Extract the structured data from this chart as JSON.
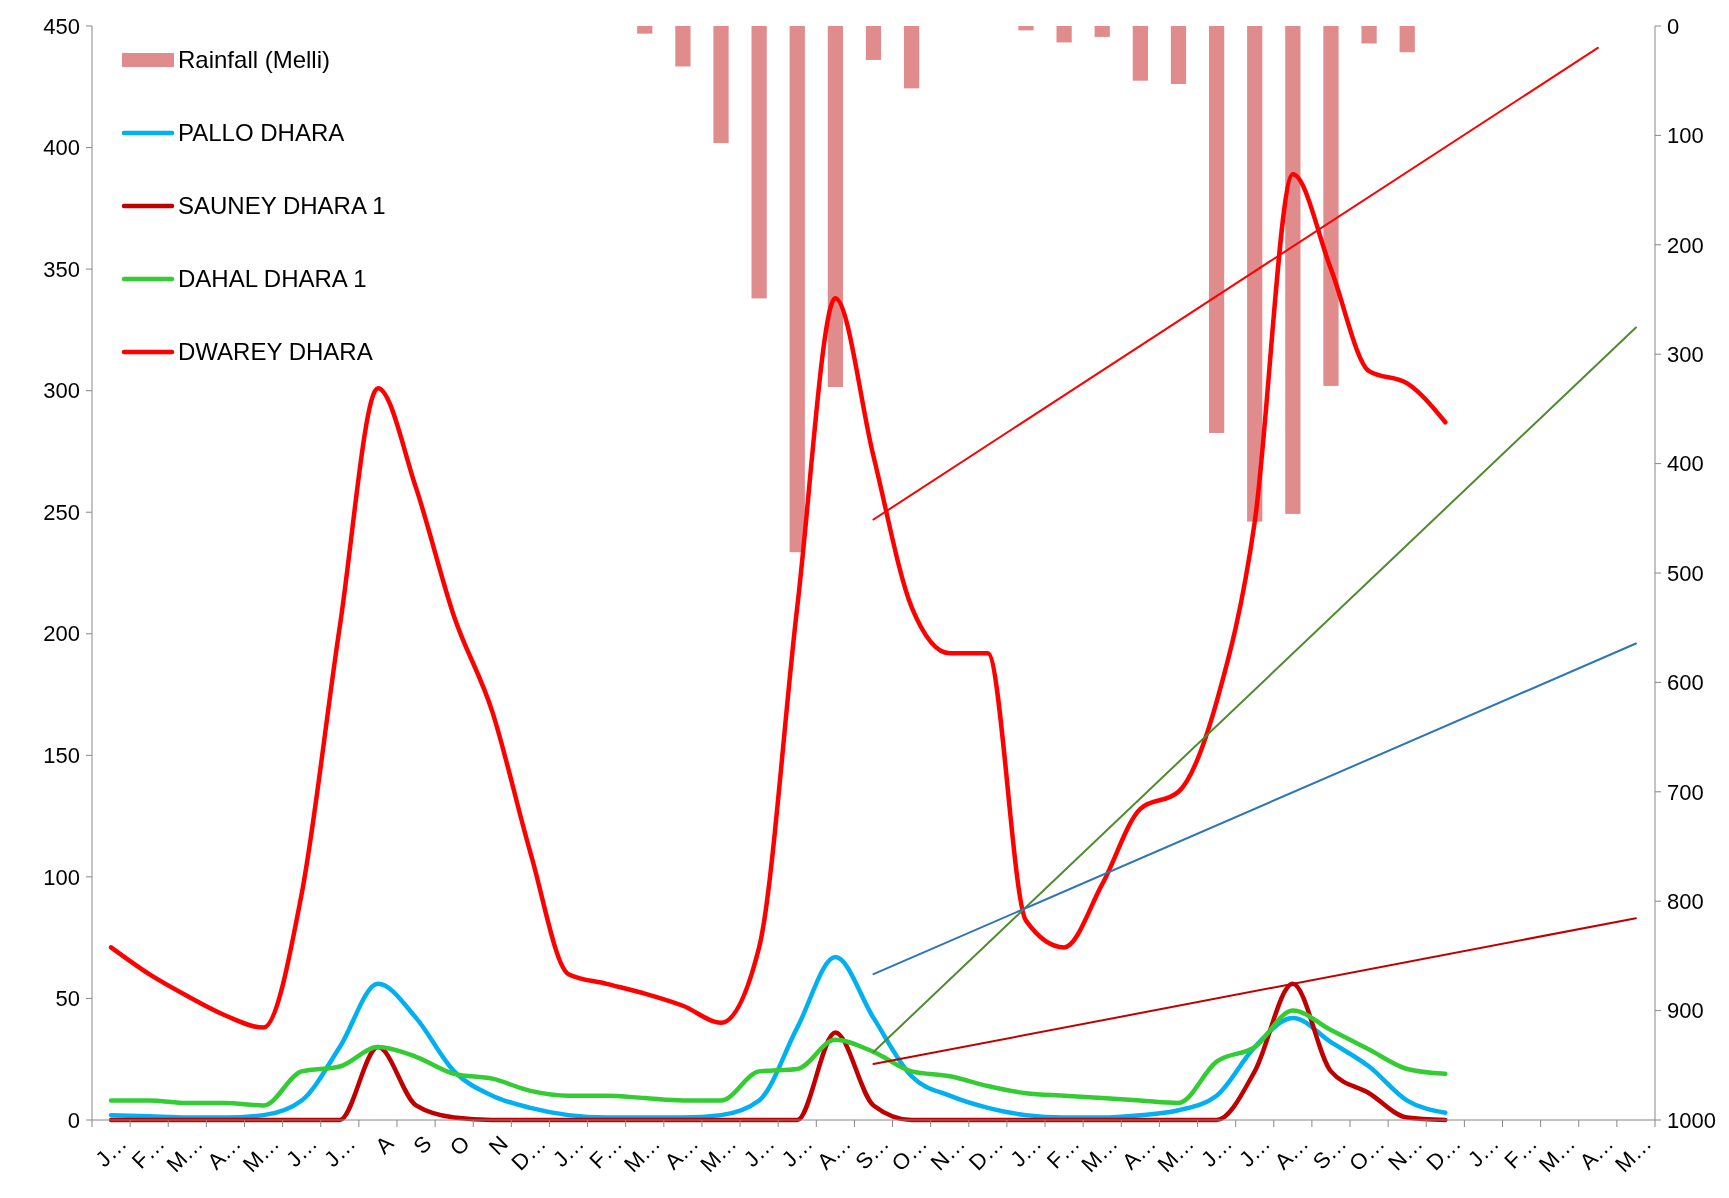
{
  "chart_data": {
    "type": "line",
    "categories": [
      "J…",
      "F…",
      "M…",
      "A…",
      "M…",
      "J…",
      "J…",
      "A",
      "S",
      "O",
      "N",
      "D…",
      "J…",
      "F…",
      "M…",
      "A…",
      "M…",
      "J…",
      "J…",
      "A…",
      "S…",
      "O…",
      "N…",
      "D…",
      "J…",
      "F…",
      "M…",
      "A…",
      "M…",
      "J…",
      "J…",
      "A…",
      "S…",
      "O…",
      "N…",
      "D…",
      "J…",
      "F…",
      "M…",
      "A…",
      "M…"
    ],
    "ylim": [
      0,
      450
    ],
    "yticks": [
      0,
      50,
      100,
      150,
      200,
      250,
      300,
      350,
      400,
      450
    ],
    "y2lim": [
      1000,
      0
    ],
    "y2ticks": [
      0,
      100,
      200,
      300,
      400,
      500,
      600,
      700,
      800,
      900,
      1000
    ],
    "grid": false,
    "legend": "top left",
    "series": [
      {
        "name": "Rainfall (Melli)",
        "type": "bar",
        "axis": "y2",
        "color": "#e08c8c",
        "values": [
          null,
          null,
          null,
          null,
          null,
          null,
          null,
          null,
          null,
          null,
          null,
          null,
          null,
          null,
          7,
          37,
          107,
          249,
          481,
          330,
          31,
          57,
          null,
          null,
          4,
          15,
          10,
          50,
          53,
          372,
          453,
          446,
          329,
          16,
          24,
          null,
          null,
          null,
          null,
          null,
          null
        ]
      },
      {
        "name": "PALLO DHARA",
        "color": "#00b0f0",
        "values": [
          2,
          1.5,
          1,
          1,
          2,
          8,
          30,
          56,
          42,
          20,
          10,
          5,
          2,
          1,
          1,
          1,
          2,
          8,
          38,
          67,
          42,
          18,
          10,
          5,
          2,
          1,
          1,
          2,
          4,
          10,
          30,
          42,
          32,
          22,
          8,
          3,
          null,
          null,
          null,
          null,
          null
        ]
      },
      {
        "name": "SAUNEY DHARA 1",
        "color": "#c00000",
        "values": [
          0,
          0,
          0,
          0,
          0,
          0,
          0,
          30,
          6,
          1,
          0,
          0,
          0,
          0,
          0,
          0,
          0,
          0,
          0,
          36,
          6,
          0,
          0,
          0,
          0,
          0,
          0,
          0,
          0,
          0,
          20,
          56,
          20,
          11,
          1,
          0,
          null,
          null,
          null,
          null,
          null
        ]
      },
      {
        "name": "DAHAL DHARA 1",
        "color": "#33cc33",
        "values": [
          8,
          8,
          7,
          7,
          6,
          20,
          22,
          30,
          26,
          19,
          17,
          12,
          10,
          10,
          9,
          8,
          8,
          20,
          21,
          33,
          28,
          20,
          18,
          14,
          11,
          10,
          9,
          8,
          7,
          24,
          30,
          45,
          37,
          29,
          21,
          19,
          null,
          null,
          null,
          null,
          null
        ]
      },
      {
        "name": "DWAREY DHARA",
        "color": "#ff0000",
        "values": [
          71,
          60,
          51,
          43,
          38,
          93,
          203,
          301,
          260,
          207,
          168,
          110,
          60,
          56,
          52,
          47,
          40,
          71,
          211,
          338,
          273,
          211,
          192,
          192,
          82,
          71,
          97,
          128,
          135,
          172,
          246,
          389,
          350,
          308,
          303,
          287,
          null,
          null,
          null,
          null,
          null
        ]
      },
      {
        "color": "#ff0000",
        "values": [
          null,
          null,
          null,
          null,
          null,
          null,
          null,
          null,
          null,
          null,
          null,
          null,
          null,
          null,
          null,
          null,
          null,
          null,
          null,
          null,
          247,
          null,
          null,
          null,
          null,
          null,
          null,
          null,
          null,
          null,
          null,
          null,
          null,
          null,
          null,
          null,
          null,
          null,
          null,
          441,
          null
        ]
      },
      {
        "color": "#4e8b2f",
        "values": [
          null,
          null,
          null,
          null,
          null,
          null,
          null,
          null,
          null,
          null,
          null,
          null,
          null,
          null,
          null,
          null,
          null,
          null,
          null,
          null,
          28,
          null,
          null,
          null,
          null,
          null,
          null,
          null,
          null,
          null,
          null,
          null,
          null,
          null,
          null,
          null,
          null,
          null,
          null,
          null,
          326
        ]
      },
      {
        "color": "#2e75b6",
        "values": [
          null,
          null,
          null,
          null,
          null,
          null,
          null,
          null,
          null,
          null,
          null,
          null,
          null,
          null,
          null,
          null,
          null,
          null,
          null,
          null,
          60,
          null,
          null,
          null,
          null,
          null,
          null,
          null,
          null,
          null,
          null,
          null,
          null,
          null,
          null,
          null,
          null,
          null,
          null,
          null,
          196
        ]
      },
      {
        "color": "#c00000",
        "values": [
          null,
          null,
          null,
          null,
          null,
          null,
          null,
          null,
          null,
          null,
          null,
          null,
          null,
          null,
          null,
          null,
          null,
          null,
          null,
          null,
          23,
          null,
          null,
          null,
          null,
          null,
          null,
          null,
          null,
          null,
          null,
          null,
          null,
          null,
          null,
          null,
          null,
          null,
          null,
          null,
          83
        ]
      }
    ]
  }
}
